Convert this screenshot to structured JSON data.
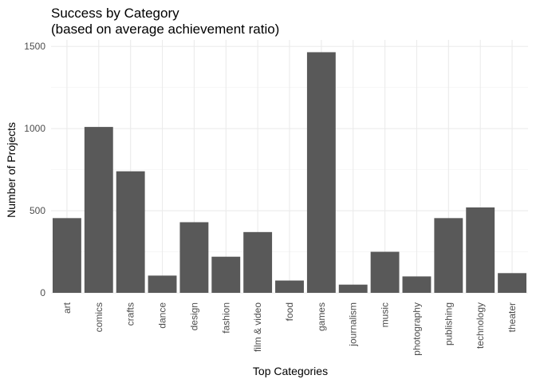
{
  "chart_data": {
    "type": "bar",
    "title": [
      "Success by Category",
      "(based on average achievement ratio)"
    ],
    "xlabel": "Top Categories",
    "ylabel": "Number of Projects",
    "categories": [
      "art",
      "comics",
      "crafts",
      "dance",
      "design",
      "fashion",
      "film & video",
      "food",
      "games",
      "journalism",
      "music",
      "photography",
      "publishing",
      "technology",
      "theater"
    ],
    "values": [
      455,
      1010,
      740,
      105,
      430,
      220,
      370,
      75,
      1465,
      50,
      250,
      100,
      455,
      520,
      120
    ],
    "yticks": [
      0,
      500,
      1000,
      1500
    ],
    "ylim": [
      0,
      1540
    ],
    "grid": true,
    "colors": {
      "bar": "#595959",
      "grid": "#ebebeb",
      "text": "#4d4d4d"
    }
  }
}
